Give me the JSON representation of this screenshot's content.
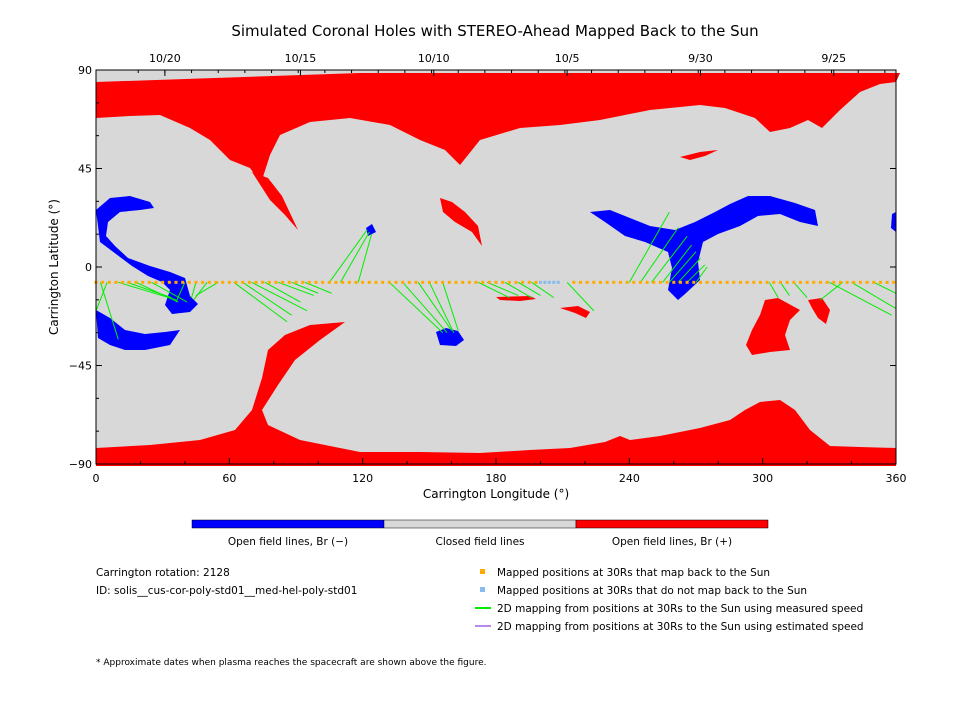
{
  "chart_data": {
    "type": "map",
    "title": "Simulated Coronal Holes with STEREO-Ahead Mapped Back to the Sun",
    "xlabel": "Carrington Longitude (°)",
    "ylabel": "Carrington Latitude (°)",
    "xlim": [
      0,
      360
    ],
    "ylim": [
      -90,
      90
    ],
    "x_ticks": [
      "0",
      "60",
      "120",
      "180",
      "240",
      "300",
      "360"
    ],
    "y_ticks": [
      "90",
      "45",
      "0",
      "−45",
      "−90"
    ],
    "top_date_ticks": [
      {
        "label": "10/20",
        "lon": 31
      },
      {
        "label": "10/15",
        "lon": 92
      },
      {
        "label": "10/10",
        "lon": 152
      },
      {
        "label": "10/5",
        "lon": 212
      },
      {
        "label": "9/30",
        "lon": 272
      },
      {
        "label": "9/25",
        "lon": 332
      }
    ],
    "colorbar": [
      {
        "label": "Open field lines, Br (−)",
        "color": "#0000ff"
      },
      {
        "label": "Closed field lines",
        "color": "#d8d8d8"
      },
      {
        "label": "Open field lines, Br (+)",
        "color": "#ff0000"
      }
    ],
    "colors": {
      "closed": "#d8d8d8",
      "open_negative": "#0000ff",
      "open_positive": "#ff0000",
      "mapped_back": "#ffaa00",
      "not_mapped": "#88bbee",
      "measured_speed": "#00ee00",
      "estimated_speed": "#bb88ee"
    },
    "info": {
      "rotation": "Carrington rotation: 2128",
      "id": "ID: solis__cus-cor-poly-std01__med-hel-poly-std01"
    },
    "legend": [
      {
        "label": "Mapped positions at 30Rs that map back to the Sun",
        "marker": "square",
        "color": "#ffaa00"
      },
      {
        "label": "Mapped positions at 30Rs that do not map back to the Sun",
        "marker": "square",
        "color": "#88bbee"
      },
      {
        "label": "2D mapping from positions at 30Rs to the Sun using measured speed",
        "marker": "line",
        "color": "#00ee00"
      },
      {
        "label": "2D mapping from positions at 30Rs to the Sun using estimated speed",
        "marker": "line",
        "color": "#bb88ee"
      }
    ],
    "footnote": "* Approximate dates when plasma reaches the spacecraft are shown above the figure.",
    "trajectory_latitude": -7,
    "mapped_points_lon_ranges": [
      [
        0,
        200
      ],
      [
        215,
        360
      ]
    ],
    "not_mapped_points_lon_range": [
      200,
      208
    ],
    "mapping_lines": [
      {
        "from": [
          10,
          -7
        ],
        "to": [
          36,
          -15
        ]
      },
      {
        "from": [
          14,
          -7
        ],
        "to": [
          34,
          -14
        ]
      },
      {
        "from": [
          18,
          -7
        ],
        "to": [
          37,
          -16
        ]
      },
      {
        "from": [
          25,
          -7
        ],
        "to": [
          41,
          -16
        ]
      },
      {
        "from": [
          40,
          -7
        ],
        "to": [
          36,
          -16
        ]
      },
      {
        "from": [
          45,
          -7
        ],
        "to": [
          43,
          -14
        ]
      },
      {
        "from": [
          50,
          -7
        ],
        "to": [
          44,
          -15
        ]
      },
      {
        "from": [
          55,
          -7
        ],
        "to": [
          45,
          -13
        ]
      },
      {
        "from": [
          2,
          -7
        ],
        "to": [
          10,
          -33
        ]
      },
      {
        "from": [
          5,
          -7
        ],
        "to": [
          0,
          -20
        ]
      },
      {
        "from": [
          62,
          -7
        ],
        "to": [
          86,
          -25
        ]
      },
      {
        "from": [
          66,
          -7
        ],
        "to": [
          88,
          -22
        ]
      },
      {
        "from": [
          70,
          -7
        ],
        "to": [
          95,
          -20
        ]
      },
      {
        "from": [
          76,
          -7
        ],
        "to": [
          92,
          -16
        ]
      },
      {
        "from": [
          82,
          -7
        ],
        "to": [
          98,
          -13
        ]
      },
      {
        "from": [
          88,
          -7
        ],
        "to": [
          100,
          -12
        ]
      },
      {
        "from": [
          94,
          -7
        ],
        "to": [
          106,
          -12
        ]
      },
      {
        "from": [
          105,
          -7
        ],
        "to": [
          122,
          17
        ]
      },
      {
        "from": [
          110,
          -7
        ],
        "to": [
          123,
          16
        ]
      },
      {
        "from": [
          118,
          -7
        ],
        "to": [
          124,
          15
        ]
      },
      {
        "from": [
          132,
          -7
        ],
        "to": [
          156,
          -30
        ]
      },
      {
        "from": [
          138,
          -7
        ],
        "to": [
          158,
          -30
        ]
      },
      {
        "from": [
          145,
          -7
        ],
        "to": [
          160,
          -29
        ]
      },
      {
        "from": [
          150,
          -7
        ],
        "to": [
          161,
          -30
        ]
      },
      {
        "from": [
          156,
          -7
        ],
        "to": [
          163,
          -29
        ]
      },
      {
        "from": [
          172,
          -7
        ],
        "to": [
          186,
          -14
        ]
      },
      {
        "from": [
          176,
          -7
        ],
        "to": [
          190,
          -13
        ]
      },
      {
        "from": [
          184,
          -7
        ],
        "to": [
          196,
          -14
        ]
      },
      {
        "from": [
          190,
          -7
        ],
        "to": [
          200,
          -13
        ]
      },
      {
        "from": [
          196,
          -7
        ],
        "to": [
          206,
          -14
        ]
      },
      {
        "from": [
          212,
          -7
        ],
        "to": [
          224,
          -20
        ]
      },
      {
        "from": [
          240,
          -7
        ],
        "to": [
          258,
          25
        ]
      },
      {
        "from": [
          245,
          -7
        ],
        "to": [
          262,
          18
        ]
      },
      {
        "from": [
          250,
          -7
        ],
        "to": [
          266,
          14
        ]
      },
      {
        "from": [
          255,
          -7
        ],
        "to": [
          268,
          10
        ]
      },
      {
        "from": [
          258,
          -7
        ],
        "to": [
          270,
          7
        ]
      },
      {
        "from": [
          262,
          -7
        ],
        "to": [
          272,
          4
        ]
      },
      {
        "from": [
          266,
          -7
        ],
        "to": [
          274,
          1
        ]
      },
      {
        "from": [
          270,
          -7
        ],
        "to": [
          275,
          0
        ]
      },
      {
        "from": [
          303,
          -7
        ],
        "to": [
          307,
          -14
        ]
      },
      {
        "from": [
          308,
          -7
        ],
        "to": [
          312,
          -13
        ]
      },
      {
        "from": [
          314,
          -7
        ],
        "to": [
          320,
          -14
        ]
      },
      {
        "from": [
          330,
          -7
        ],
        "to": [
          358,
          -22
        ]
      },
      {
        "from": [
          340,
          -7
        ],
        "to": [
          360,
          -19
        ]
      },
      {
        "from": [
          350,
          -7
        ],
        "to": [
          360,
          -12
        ]
      },
      {
        "from": [
          336,
          -7
        ],
        "to": [
          326,
          -15
        ]
      }
    ]
  }
}
